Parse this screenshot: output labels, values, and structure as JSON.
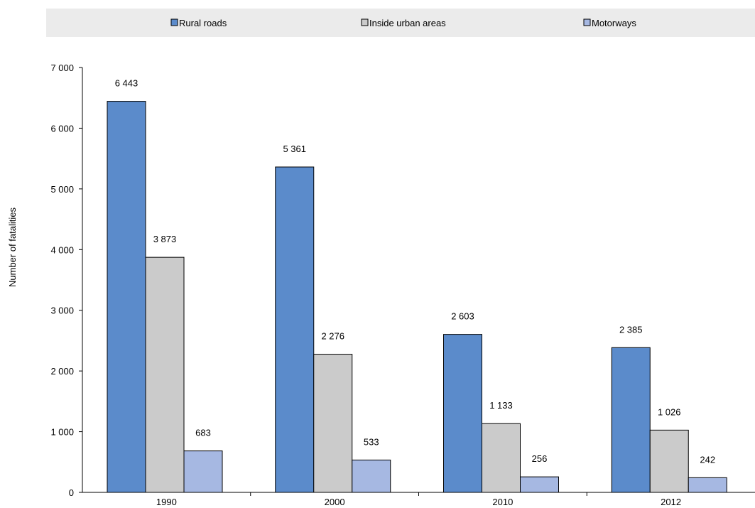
{
  "chart_data": {
    "type": "bar",
    "categories": [
      "1990",
      "2000",
      "2010",
      "2012"
    ],
    "series": [
      {
        "name": "Rural roads",
        "color": "#5b8bcb",
        "values": [
          6443,
          5361,
          2603,
          2385
        ],
        "labels": [
          "6 443",
          "5 361",
          "2 603",
          "2 385"
        ]
      },
      {
        "name": "Inside urban areas",
        "color": "#cbcbcb",
        "values": [
          3873,
          2276,
          1133,
          1026
        ],
        "labels": [
          "3 873",
          "2 276",
          "1 133",
          "1 026"
        ]
      },
      {
        "name": "Motorways",
        "color": "#a6b8e2",
        "values": [
          683,
          533,
          256,
          242
        ],
        "labels": [
          "683",
          "533",
          "256",
          "242"
        ]
      }
    ],
    "ylabel": "Number of fatalities",
    "xlabel": "",
    "ylim": [
      0,
      7000
    ],
    "yticks": [
      0,
      1000,
      2000,
      3000,
      4000,
      5000,
      6000,
      7000
    ],
    "ytick_labels": [
      "0",
      "1 000",
      "2 000",
      "3 000",
      "4 000",
      "5 000",
      "6 000",
      "7 000"
    ],
    "legend_position": "top",
    "grid": false
  }
}
